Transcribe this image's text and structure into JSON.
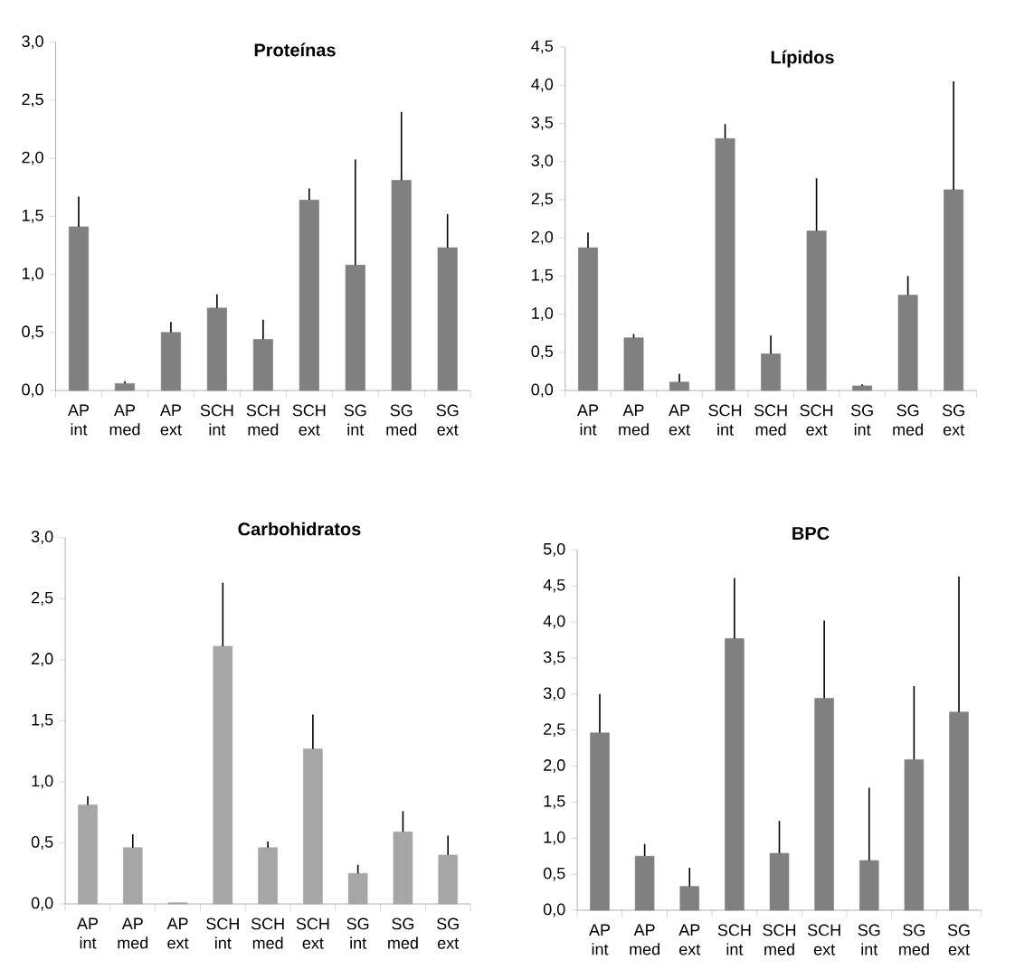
{
  "chart_data": [
    {
      "type": "bar",
      "title": "Proteínas",
      "categories": [
        "AP int",
        "AP med",
        "AP ext",
        "SCH int",
        "SCH med",
        "SCH ext",
        "SG int",
        "SG med",
        "SG ext"
      ],
      "color": "#808080",
      "values": [
        1.41,
        0.06,
        0.5,
        0.71,
        0.44,
        1.64,
        1.08,
        1.81,
        1.23
      ],
      "errors": [
        [
          1.41,
          1.67
        ],
        [
          0.06,
          0.08
        ],
        [
          0.5,
          0.59
        ],
        [
          0.71,
          0.83
        ],
        [
          0.44,
          0.61
        ],
        [
          1.64,
          1.74
        ],
        [
          1.08,
          1.99
        ],
        [
          1.81,
          2.4
        ],
        [
          1.23,
          1.52
        ]
      ],
      "ylim": [
        0,
        3
      ],
      "yticks": [
        {
          "value": 0,
          "label": "0,0"
        },
        {
          "value": 0.5,
          "label": "0,5"
        },
        {
          "value": 1,
          "label": "1,0"
        },
        {
          "value": 1.5,
          "label": "1,5"
        },
        {
          "value": 2,
          "label": "2,0"
        },
        {
          "value": 2.5,
          "label": "2,5"
        },
        {
          "value": 3,
          "label": "3,0"
        }
      ]
    },
    {
      "type": "bar",
      "title": "Lípidos",
      "categories": [
        "AP int",
        "AP med",
        "AP ext",
        "SCH int",
        "SCH med",
        "SCH ext",
        "SG int",
        "SG med",
        "SG ext"
      ],
      "color": "#808080",
      "values": [
        1.87,
        0.69,
        0.11,
        3.3,
        0.48,
        2.09,
        0.06,
        1.25,
        2.63
      ],
      "errors": [
        [
          1.87,
          2.07
        ],
        [
          0.69,
          0.74
        ],
        [
          0.11,
          0.22
        ],
        [
          3.3,
          3.49
        ],
        [
          0.48,
          0.72
        ],
        [
          2.09,
          2.78
        ],
        [
          0.06,
          0.08
        ],
        [
          1.25,
          1.5
        ],
        [
          2.63,
          4.05
        ]
      ],
      "ylim": [
        0,
        4.5
      ],
      "yticks": [
        {
          "value": 0,
          "label": "0,0"
        },
        {
          "value": 0.5,
          "label": "0,5"
        },
        {
          "value": 1,
          "label": "1,0"
        },
        {
          "value": 1.5,
          "label": "1,5"
        },
        {
          "value": 2,
          "label": "2,0"
        },
        {
          "value": 2.5,
          "label": "2,5"
        },
        {
          "value": 3,
          "label": "3,0"
        },
        {
          "value": 3.5,
          "label": "3,5"
        },
        {
          "value": 4,
          "label": "4,0"
        },
        {
          "value": 4.5,
          "label": "4,5"
        }
      ]
    },
    {
      "type": "bar",
      "title": "Carbohidratos",
      "categories": [
        "AP int",
        "AP med",
        "AP ext",
        "SCH int",
        "SCH med",
        "SCH ext",
        "SG int",
        "SG med",
        "SG ext"
      ],
      "color": "#a6a6a6",
      "values": [
        0.81,
        0.46,
        0.01,
        2.11,
        0.46,
        1.27,
        0.25,
        0.59,
        0.4
      ],
      "errors": [
        [
          0.81,
          0.88
        ],
        [
          0.46,
          0.57
        ],
        null,
        [
          2.11,
          2.63
        ],
        [
          0.46,
          0.51
        ],
        [
          1.27,
          1.55
        ],
        [
          0.25,
          0.32
        ],
        [
          0.59,
          0.76
        ],
        [
          0.4,
          0.56
        ]
      ],
      "ylim": [
        0,
        3
      ],
      "yticks": [
        {
          "value": 0,
          "label": "0,0"
        },
        {
          "value": 0.5,
          "label": "0,5"
        },
        {
          "value": 1,
          "label": "1,0"
        },
        {
          "value": 1.5,
          "label": "1,5"
        },
        {
          "value": 2,
          "label": "2,0"
        },
        {
          "value": 2.5,
          "label": "2,5"
        },
        {
          "value": 3,
          "label": "3,0"
        }
      ]
    },
    {
      "type": "bar",
      "title": "BPC",
      "categories": [
        "AP int",
        "AP med",
        "AP ext",
        "SCH int",
        "SCH med",
        "SCH ext",
        "SG int",
        "SG med",
        "SG ext"
      ],
      "color": "#808080",
      "values": [
        2.46,
        0.75,
        0.33,
        3.77,
        0.79,
        2.94,
        0.69,
        2.09,
        2.75
      ],
      "errors": [
        [
          2.46,
          3.0
        ],
        [
          0.75,
          0.92
        ],
        [
          0.33,
          0.59
        ],
        [
          3.77,
          4.61
        ],
        [
          0.79,
          1.24
        ],
        [
          2.94,
          4.02
        ],
        [
          0.69,
          1.7
        ],
        [
          2.09,
          3.11
        ],
        [
          2.75,
          4.63
        ]
      ],
      "ylim": [
        0,
        5
      ],
      "yticks": [
        {
          "value": 0,
          "label": "0,0"
        },
        {
          "value": 0.5,
          "label": "0,5"
        },
        {
          "value": 1,
          "label": "1,0"
        },
        {
          "value": 1.5,
          "label": "1,5"
        },
        {
          "value": 2,
          "label": "2,0"
        },
        {
          "value": 2.5,
          "label": "2,5"
        },
        {
          "value": 3,
          "label": "3,0"
        },
        {
          "value": 3.5,
          "label": "3,5"
        },
        {
          "value": 4,
          "label": "4,0"
        },
        {
          "value": 4.5,
          "label": "4,5"
        },
        {
          "value": 5,
          "label": "5,0"
        }
      ]
    }
  ]
}
